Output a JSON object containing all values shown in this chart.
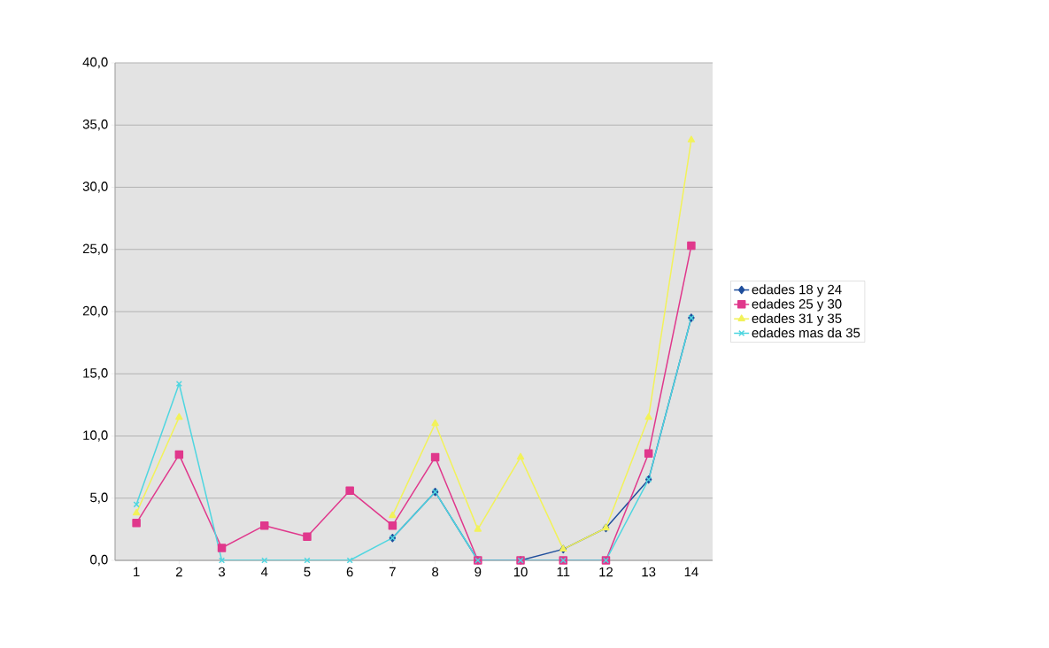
{
  "chart_data": {
    "type": "line",
    "categories": [
      "1",
      "2",
      "3",
      "4",
      "5",
      "6",
      "7",
      "8",
      "9",
      "10",
      "11",
      "12",
      "13",
      "14"
    ],
    "series": [
      {
        "name": "edades 18 y 24",
        "color": "#1f4e9c",
        "marker": "diamond",
        "values": [
          null,
          null,
          null,
          null,
          null,
          null,
          1.8,
          5.5,
          0,
          0,
          0.9,
          2.6,
          6.5,
          19.5
        ]
      },
      {
        "name": "edades 25 y 30",
        "color": "#e0388c",
        "marker": "square",
        "values": [
          3.0,
          8.5,
          1.0,
          2.8,
          1.9,
          5.6,
          2.8,
          8.3,
          0,
          0,
          0,
          0,
          8.6,
          25.3
        ]
      },
      {
        "name": "edades 31 y 35",
        "color": "#f2f25a",
        "marker": "triangle",
        "values": [
          3.8,
          11.5,
          null,
          null,
          null,
          null,
          3.6,
          11.0,
          2.5,
          8.3,
          0.9,
          2.6,
          11.5,
          33.8
        ]
      },
      {
        "name": "edades mas da 35",
        "color": "#4fd6e0",
        "marker": "cross",
        "values": [
          4.5,
          14.2,
          0,
          0,
          0,
          0,
          1.8,
          5.5,
          0,
          0,
          0,
          0,
          6.5,
          19.5
        ]
      }
    ],
    "ylim": [
      0,
      40
    ],
    "yticks": [
      {
        "value": 0,
        "label": "0,0"
      },
      {
        "value": 5,
        "label": "5,0"
      },
      {
        "value": 10,
        "label": "10,0"
      },
      {
        "value": 15,
        "label": "15,0"
      },
      {
        "value": 20,
        "label": "20,0"
      },
      {
        "value": 25,
        "label": "25,0"
      },
      {
        "value": 30,
        "label": "30,0"
      },
      {
        "value": 35,
        "label": "35,0"
      },
      {
        "value": 40,
        "label": "40,0"
      }
    ],
    "grid": "y",
    "legend": "right"
  }
}
